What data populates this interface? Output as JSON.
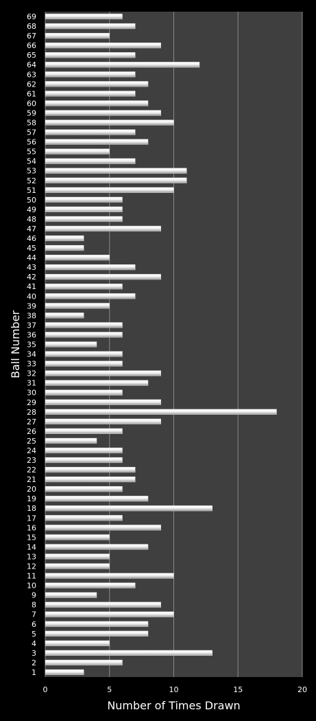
{
  "chart_data": {
    "type": "bar",
    "orientation": "horizontal",
    "title": "",
    "xlabel": "Number of Times Drawn",
    "ylabel": "Ball Number",
    "xlim": [
      0,
      20
    ],
    "xticks": [
      "0",
      "5",
      "10",
      "15",
      "20"
    ],
    "grid": "vertical",
    "legend": "none",
    "colors": {
      "background": "#000000",
      "plot_area": "#3f3f3f",
      "bar": "#f2f2f2",
      "grid": "#8a8a8a",
      "text": "#ffffff"
    },
    "categories": [
      "1",
      "2",
      "3",
      "4",
      "5",
      "6",
      "7",
      "8",
      "9",
      "10",
      "11",
      "12",
      "13",
      "14",
      "15",
      "16",
      "17",
      "18",
      "19",
      "20",
      "21",
      "22",
      "23",
      "24",
      "25",
      "26",
      "27",
      "28",
      "29",
      "30",
      "31",
      "32",
      "33",
      "34",
      "35",
      "36",
      "37",
      "38",
      "39",
      "40",
      "41",
      "42",
      "43",
      "44",
      "45",
      "46",
      "47",
      "48",
      "49",
      "50",
      "51",
      "52",
      "53",
      "54",
      "55",
      "56",
      "57",
      "58",
      "59",
      "60",
      "61",
      "62",
      "63",
      "64",
      "65",
      "66",
      "67",
      "68",
      "69"
    ],
    "values": [
      3,
      6,
      13,
      5,
      8,
      8,
      10,
      9,
      4,
      7,
      10,
      5,
      5,
      8,
      5,
      9,
      6,
      13,
      8,
      6,
      7,
      7,
      6,
      6,
      4,
      6,
      9,
      18,
      9,
      6,
      8,
      9,
      6,
      6,
      4,
      6,
      6,
      3,
      5,
      7,
      6,
      9,
      7,
      5,
      3,
      3,
      9,
      6,
      6,
      6,
      10,
      11,
      11,
      7,
      5,
      8,
      7,
      10,
      9,
      8,
      7,
      8,
      7,
      12,
      7,
      9,
      5,
      7,
      6
    ]
  }
}
